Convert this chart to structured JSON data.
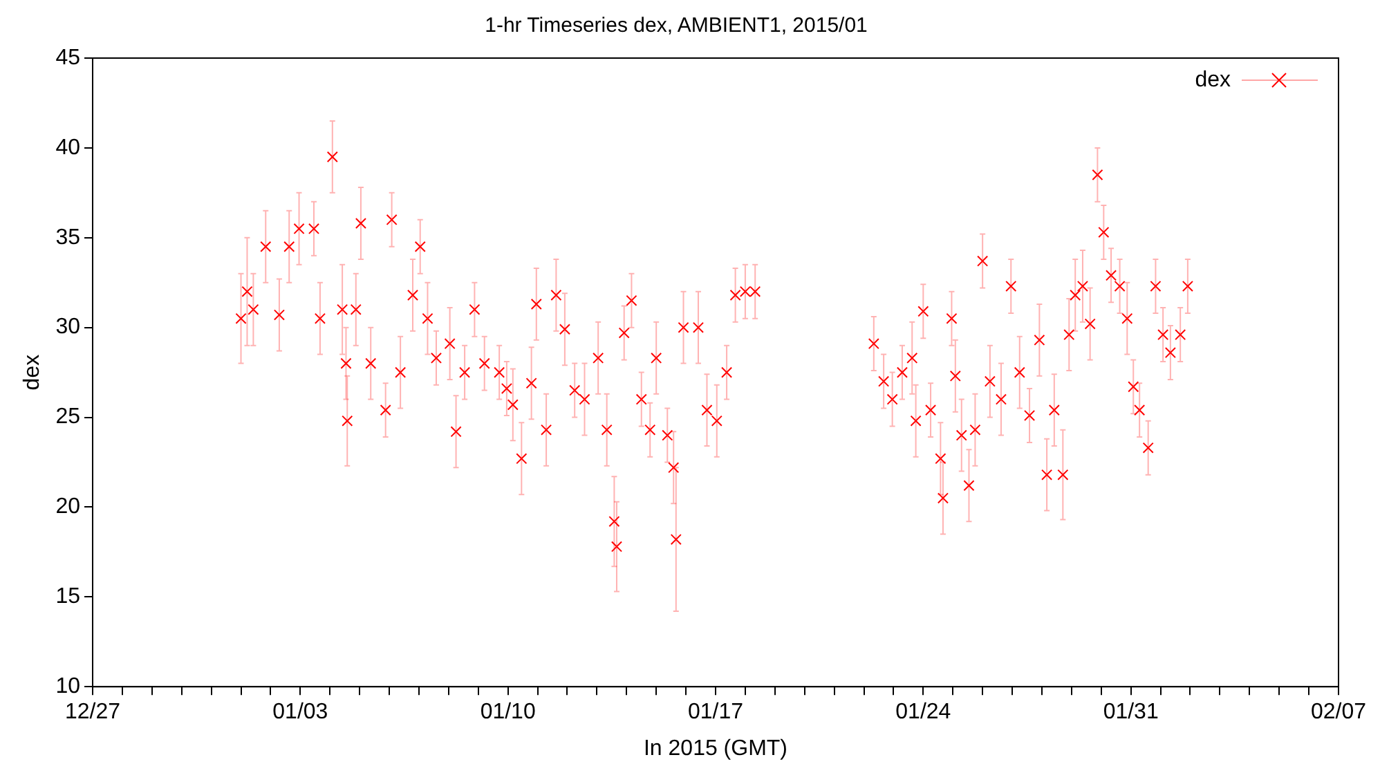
{
  "chart_data": {
    "type": "scatter",
    "title": "1-hr Timeseries dex, AMBIENT1, 2015/01",
    "xlabel": "In 2015 (GMT)",
    "ylabel": "dex",
    "legend": "top right",
    "marker": "cross",
    "xlim": [
      "2014-12-27",
      "2015-02-07"
    ],
    "xticks": [
      {
        "value": "2014-12-27",
        "label": "12/27"
      },
      {
        "value": "2014-12-28",
        "label": null
      },
      {
        "value": "2014-12-29",
        "label": null
      },
      {
        "value": "2014-12-30",
        "label": null
      },
      {
        "value": "2014-12-31",
        "label": null
      },
      {
        "value": "2015-01-01",
        "label": null
      },
      {
        "value": "2015-01-02",
        "label": null
      },
      {
        "value": "2015-01-03",
        "label": "01/03"
      },
      {
        "value": "2015-01-04",
        "label": null
      },
      {
        "value": "2015-01-05",
        "label": null
      },
      {
        "value": "2015-01-06",
        "label": null
      },
      {
        "value": "2015-01-07",
        "label": null
      },
      {
        "value": "2015-01-08",
        "label": null
      },
      {
        "value": "2015-01-09",
        "label": null
      },
      {
        "value": "2015-01-10",
        "label": "01/10"
      },
      {
        "value": "2015-01-11",
        "label": null
      },
      {
        "value": "2015-01-12",
        "label": null
      },
      {
        "value": "2015-01-13",
        "label": null
      },
      {
        "value": "2015-01-14",
        "label": null
      },
      {
        "value": "2015-01-15",
        "label": null
      },
      {
        "value": "2015-01-16",
        "label": null
      },
      {
        "value": "2015-01-17",
        "label": "01/17"
      },
      {
        "value": "2015-01-18",
        "label": null
      },
      {
        "value": "2015-01-19",
        "label": null
      },
      {
        "value": "2015-01-20",
        "label": null
      },
      {
        "value": "2015-01-21",
        "label": null
      },
      {
        "value": "2015-01-22",
        "label": null
      },
      {
        "value": "2015-01-23",
        "label": null
      },
      {
        "value": "2015-01-24",
        "label": "01/24"
      },
      {
        "value": "2015-01-25",
        "label": null
      },
      {
        "value": "2015-01-26",
        "label": null
      },
      {
        "value": "2015-01-27",
        "label": null
      },
      {
        "value": "2015-01-28",
        "label": null
      },
      {
        "value": "2015-01-29",
        "label": null
      },
      {
        "value": "2015-01-30",
        "label": null
      },
      {
        "value": "2015-01-31",
        "label": "01/31"
      },
      {
        "value": "2015-02-01",
        "label": null
      },
      {
        "value": "2015-02-02",
        "label": null
      },
      {
        "value": "2015-02-03",
        "label": null
      },
      {
        "value": "2015-02-04",
        "label": null
      },
      {
        "value": "2015-02-05",
        "label": null
      },
      {
        "value": "2015-02-06",
        "label": null
      },
      {
        "value": "2015-02-07",
        "label": "02/07"
      }
    ],
    "ylim": [
      10,
      45
    ],
    "yticks": [
      10,
      15,
      20,
      25,
      30,
      35,
      40,
      45
    ],
    "x": [
      "2015-01-01T00:00",
      "2015-01-01T05:00",
      "2015-01-01T10:00",
      "2015-01-01T20:00",
      "2015-01-02T07:00",
      "2015-01-02T15:00",
      "2015-01-02T23:00",
      "2015-01-03T11:00",
      "2015-01-03T16:00",
      "2015-01-04T02:00",
      "2015-01-04T10:00",
      "2015-01-04T13:00",
      "2015-01-04T14:00",
      "2015-01-04T21:00",
      "2015-01-05T01:00",
      "2015-01-05T09:00",
      "2015-01-05T21:00",
      "2015-01-06T02:00",
      "2015-01-06T09:00",
      "2015-01-06T19:00",
      "2015-01-07T01:00",
      "2015-01-07T07:00",
      "2015-01-07T14:00",
      "2015-01-08T01:00",
      "2015-01-08T06:00",
      "2015-01-08T13:00",
      "2015-01-08T21:00",
      "2015-01-09T05:00",
      "2015-01-09T17:00",
      "2015-01-09T23:00",
      "2015-01-10T04:00",
      "2015-01-10T11:00",
      "2015-01-10T19:00",
      "2015-01-10T23:00",
      "2015-01-11T07:00",
      "2015-01-11T15:00",
      "2015-01-11T22:00",
      "2015-01-12T06:00",
      "2015-01-12T14:00",
      "2015-01-13T01:00",
      "2015-01-13T08:00",
      "2015-01-13T14:00",
      "2015-01-13T16:00",
      "2015-01-13T22:00",
      "2015-01-14T04:00",
      "2015-01-14T12:00",
      "2015-01-14T19:00",
      "2015-01-15T00:00",
      "2015-01-15T09:00",
      "2015-01-15T14:00",
      "2015-01-15T16:00",
      "2015-01-15T22:00",
      "2015-01-16T10:00",
      "2015-01-16T17:00",
      "2015-01-17T01:00",
      "2015-01-17T09:00",
      "2015-01-17T16:00",
      "2015-01-18T00:00",
      "2015-01-18T08:00",
      "2015-01-22T08:00",
      "2015-01-22T16:00",
      "2015-01-22T23:00",
      "2015-01-23T07:00",
      "2015-01-23T15:00",
      "2015-01-23T18:00",
      "2015-01-24T00:00",
      "2015-01-24T06:00",
      "2015-01-24T14:00",
      "2015-01-24T16:00",
      "2015-01-24T23:00",
      "2015-01-25T02:00",
      "2015-01-25T07:00",
      "2015-01-25T13:00",
      "2015-01-25T18:00",
      "2015-01-26T00:00",
      "2015-01-26T06:00",
      "2015-01-26T15:00",
      "2015-01-26T23:00",
      "2015-01-27T06:00",
      "2015-01-27T14:00",
      "2015-01-27T22:00",
      "2015-01-28T04:00",
      "2015-01-28T10:00",
      "2015-01-28T17:00",
      "2015-01-28T22:00",
      "2015-01-29T03:00",
      "2015-01-29T09:00",
      "2015-01-29T15:00",
      "2015-01-29T21:00",
      "2015-01-30T02:00",
      "2015-01-30T08:00",
      "2015-01-30T15:00",
      "2015-01-30T21:00",
      "2015-01-31T02:00",
      "2015-01-31T07:00",
      "2015-01-31T14:00",
      "2015-01-31T20:00",
      "2015-02-01T02:00",
      "2015-02-01T08:00",
      "2015-02-01T16:00",
      "2015-02-01T22:00"
    ],
    "series": [
      {
        "name": "dex",
        "color": "#ff0000",
        "values": [
          30.5,
          32,
          31,
          34.5,
          30.7,
          34.5,
          35.5,
          35.5,
          30.5,
          39.5,
          31,
          28,
          24.8,
          31,
          35.8,
          28,
          25.4,
          36,
          27.5,
          31.8,
          34.5,
          30.5,
          28.3,
          29.1,
          24.2,
          27.5,
          31,
          28,
          27.5,
          26.6,
          25.7,
          22.7,
          26.9,
          31.3,
          24.3,
          31.8,
          29.9,
          26.5,
          26,
          28.3,
          24.3,
          19.2,
          17.8,
          29.7,
          31.5,
          26,
          24.3,
          28.3,
          24,
          22.2,
          18.2,
          30,
          30,
          25.4,
          24.8,
          27.5,
          31.8,
          32,
          32,
          29.1,
          27,
          26,
          27.5,
          28.3,
          24.8,
          30.9,
          25.4,
          22.7,
          20.5,
          30.5,
          27.3,
          24,
          21.2,
          24.3,
          33.7,
          27,
          26,
          32.3,
          27.5,
          25.1,
          29.3,
          21.8,
          25.4,
          21.8,
          29.6,
          31.8,
          32.3,
          30.2,
          38.5,
          35.3,
          32.9,
          32.3,
          30.5,
          26.7,
          25.4,
          23.3,
          32.3,
          29.6,
          28.6,
          29.6,
          32.3
        ],
        "errors": [
          2.5,
          3,
          2,
          2,
          2,
          2,
          2,
          1.5,
          2,
          2,
          2.5,
          2,
          2.5,
          2,
          2,
          2,
          1.5,
          1.5,
          2,
          2,
          1.5,
          2,
          1.5,
          2,
          2,
          1.5,
          1.5,
          1.5,
          1.5,
          1.5,
          2,
          2,
          2,
          2,
          2,
          2,
          2,
          1.5,
          2,
          2,
          2,
          2.5,
          2.5,
          1.5,
          1.5,
          1.5,
          1.5,
          2,
          1.5,
          2,
          4,
          2,
          2,
          2,
          2,
          1.5,
          1.5,
          1.5,
          1.5,
          1.5,
          1.5,
          1.5,
          1.5,
          2,
          2,
          1.5,
          1.5,
          2,
          2,
          1.5,
          2,
          2,
          2,
          2,
          1.5,
          2,
          2,
          1.5,
          2,
          1.5,
          2,
          2,
          2,
          2.5,
          2,
          2,
          2,
          2,
          1.5,
          1.5,
          1.5,
          1.5,
          2,
          1.5,
          1.5,
          1.5,
          1.5,
          1.5,
          1.5,
          1.5,
          1.5
        ]
      }
    ]
  }
}
